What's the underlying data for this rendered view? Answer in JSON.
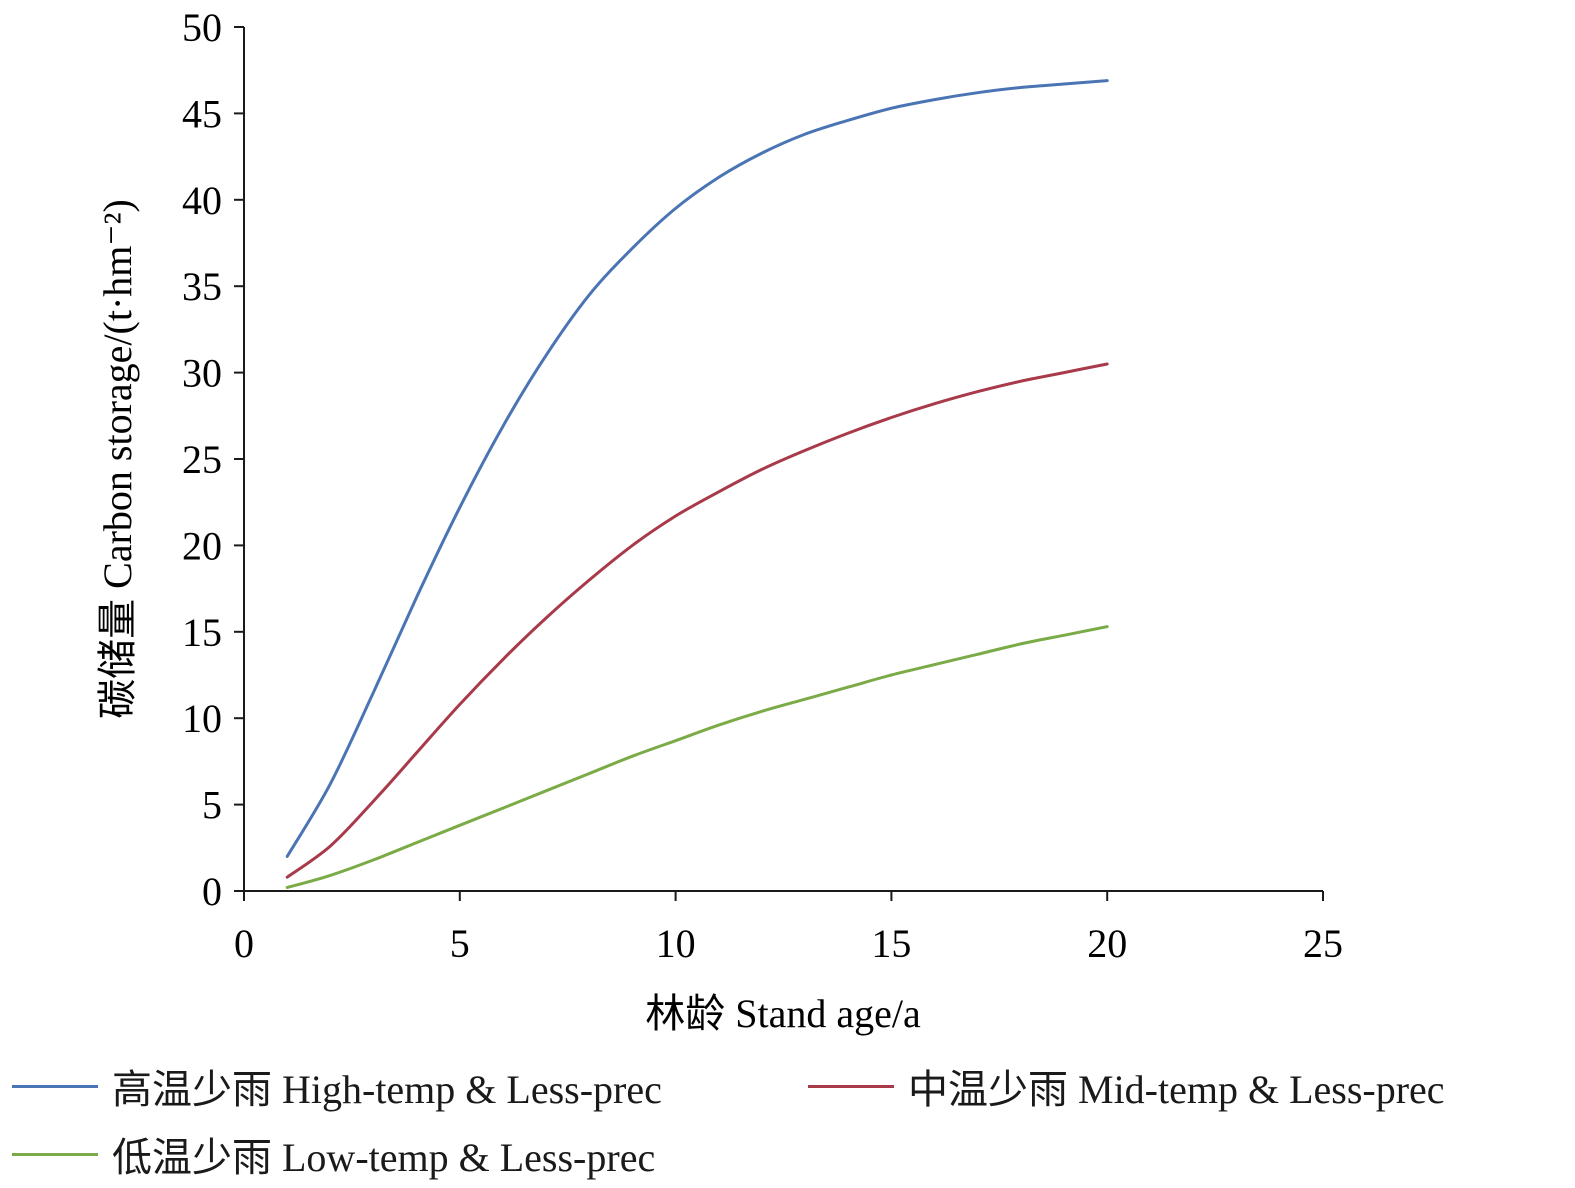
{
  "chart_data": {
    "type": "line",
    "xlabel": "林龄 Stand age/a",
    "ylabel": "碳储量 Carbon storage/(t·hm⁻²)",
    "xlim": [
      0,
      25
    ],
    "ylim": [
      0,
      50
    ],
    "xticks": [
      0,
      5,
      10,
      15,
      20,
      25
    ],
    "yticks": [
      0,
      5,
      10,
      15,
      20,
      25,
      30,
      35,
      40,
      45,
      50
    ],
    "grid": false,
    "legend_position": "bottom",
    "series": [
      {
        "name": "高温少雨 High-temp & Less-prec",
        "color": "#4a74b4",
        "x": [
          1,
          2,
          3,
          4,
          5,
          6,
          7,
          8,
          9,
          10,
          11,
          12,
          13,
          14,
          15,
          16,
          17,
          18,
          19,
          20
        ],
        "y": [
          2.0,
          6.2,
          11.5,
          17.0,
          22.2,
          26.9,
          31.0,
          34.5,
          37.2,
          39.5,
          41.3,
          42.7,
          43.8,
          44.6,
          45.3,
          45.8,
          46.2,
          46.5,
          46.7,
          46.9
        ]
      },
      {
        "name": "中温少雨 Mid-temp & Less-prec",
        "color": "#a83a4a",
        "x": [
          1,
          2,
          3,
          4,
          5,
          6,
          7,
          8,
          9,
          10,
          11,
          12,
          13,
          14,
          15,
          16,
          17,
          18,
          19,
          20
        ],
        "y": [
          0.8,
          2.6,
          5.2,
          8.0,
          10.8,
          13.4,
          15.8,
          18.0,
          20.0,
          21.7,
          23.1,
          24.4,
          25.5,
          26.5,
          27.4,
          28.2,
          28.9,
          29.5,
          30.0,
          30.5
        ]
      },
      {
        "name": "低温少雨 Low-temp & Less-prec",
        "color": "#7aab46",
        "x": [
          1,
          2,
          3,
          4,
          5,
          6,
          7,
          8,
          9,
          10,
          11,
          12,
          13,
          14,
          15,
          16,
          17,
          18,
          19,
          20
        ],
        "y": [
          0.2,
          0.9,
          1.8,
          2.8,
          3.8,
          4.8,
          5.8,
          6.8,
          7.8,
          8.7,
          9.6,
          10.4,
          11.1,
          11.8,
          12.5,
          13.1,
          13.7,
          14.3,
          14.8,
          15.3
        ]
      }
    ]
  }
}
